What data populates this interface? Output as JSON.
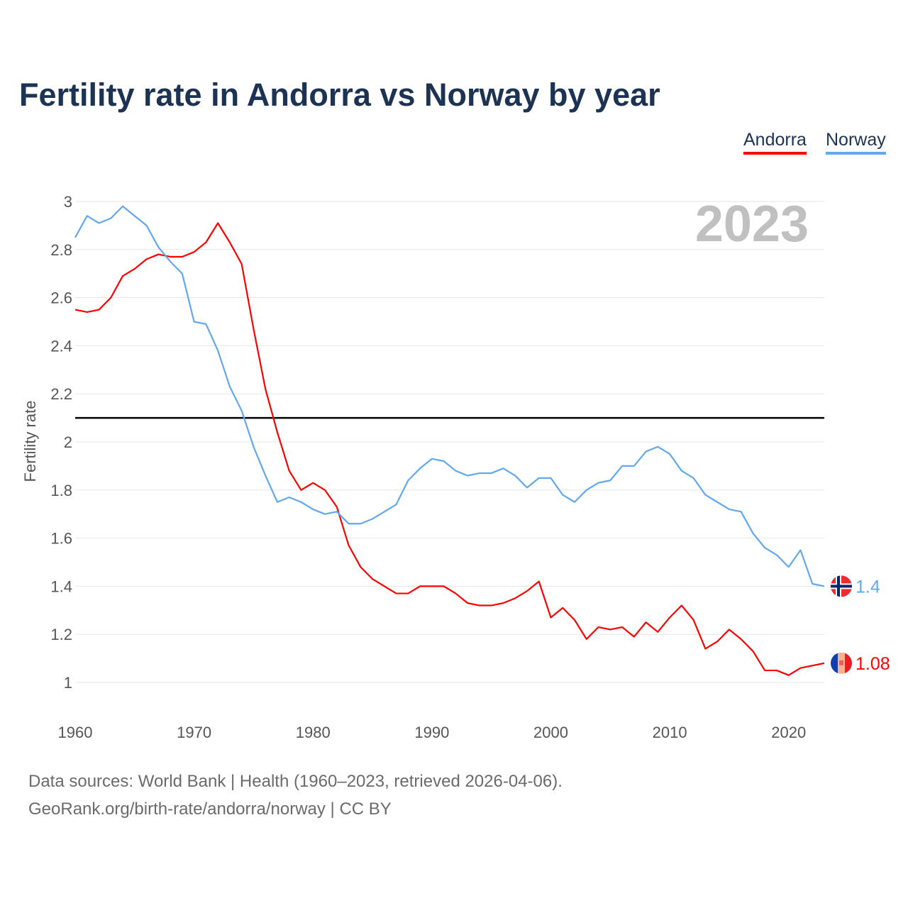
{
  "title": "Fertility rate in Andorra vs Norway by year",
  "legend": [
    "Andorra",
    "Norway"
  ],
  "footer": {
    "line1": "Data sources: World Bank | Health (1960–2023, retrieved 2026-04-06).",
    "line2": "GeoRank.org/birth-rate/andorra/norway | CC BY"
  },
  "year_label": "2023",
  "colors": {
    "Andorra": "#ff0000",
    "Norway": "#61a8ec",
    "reference": "#000000"
  },
  "chart_data": {
    "type": "line",
    "title": "Fertility rate in Andorra vs Norway by year",
    "xlabel": "",
    "ylabel": "Fertility rate",
    "xlim": [
      1960,
      2023
    ],
    "ylim": [
      1,
      3
    ],
    "xticks": [
      "1960",
      "1970",
      "1980",
      "1990",
      "2000",
      "2010",
      "2020"
    ],
    "yticks": [
      "1",
      "1.2",
      "1.4",
      "1.6",
      "1.8",
      "2",
      "2.2",
      "2.4",
      "2.6",
      "2.8",
      "3"
    ],
    "reference_line": 2.1,
    "grid": true,
    "legend_position": "top-right",
    "x_start": 1960,
    "series": [
      {
        "name": "Andorra",
        "end_label": "1.08",
        "values": [
          2.55,
          2.54,
          2.55,
          2.6,
          2.69,
          2.72,
          2.76,
          2.78,
          2.77,
          2.77,
          2.79,
          2.83,
          2.91,
          2.83,
          2.74,
          2.47,
          2.22,
          2.04,
          1.88,
          1.8,
          1.83,
          1.8,
          1.73,
          1.57,
          1.48,
          1.43,
          1.4,
          1.37,
          1.37,
          1.4,
          1.4,
          1.4,
          1.37,
          1.33,
          1.32,
          1.32,
          1.33,
          1.35,
          1.38,
          1.42,
          1.27,
          1.31,
          1.26,
          1.18,
          1.23,
          1.22,
          1.23,
          1.19,
          1.25,
          1.21,
          1.27,
          1.32,
          1.26,
          1.14,
          1.17,
          1.22,
          1.18,
          1.13,
          1.05,
          1.05,
          1.03,
          1.06,
          1.07,
          1.08
        ]
      },
      {
        "name": "Norway",
        "end_label": "1.4",
        "values": [
          2.85,
          2.94,
          2.91,
          2.93,
          2.98,
          2.94,
          2.9,
          2.81,
          2.75,
          2.7,
          2.5,
          2.49,
          2.38,
          2.23,
          2.13,
          1.98,
          1.86,
          1.75,
          1.77,
          1.75,
          1.72,
          1.7,
          1.71,
          1.66,
          1.66,
          1.68,
          1.71,
          1.74,
          1.84,
          1.89,
          1.93,
          1.92,
          1.88,
          1.86,
          1.87,
          1.87,
          1.89,
          1.86,
          1.81,
          1.85,
          1.85,
          1.78,
          1.75,
          1.8,
          1.83,
          1.84,
          1.9,
          1.9,
          1.96,
          1.98,
          1.95,
          1.88,
          1.85,
          1.78,
          1.75,
          1.72,
          1.71,
          1.62,
          1.56,
          1.53,
          1.48,
          1.55,
          1.41,
          1.4
        ]
      }
    ]
  }
}
